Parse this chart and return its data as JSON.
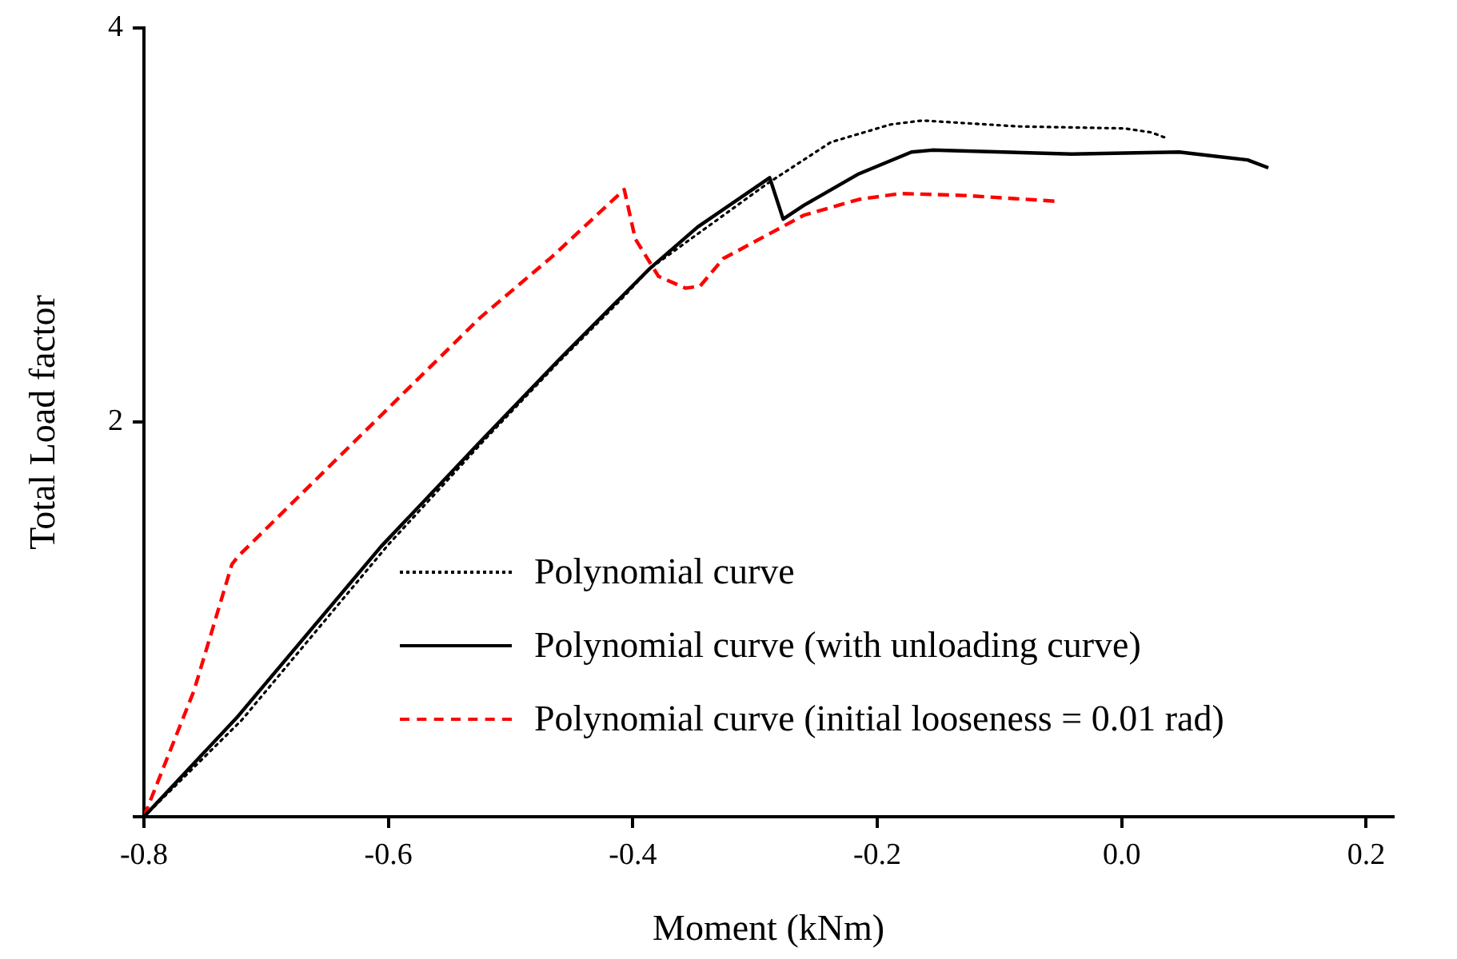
{
  "chart_data": {
    "type": "line",
    "xlabel": "Moment (kNm)",
    "ylabel": "Total Load factor",
    "xlim": [
      -0.8,
      0.222
    ],
    "xticks": [
      {
        "value": -0.8,
        "label": "-0.8"
      },
      {
        "value": -0.6,
        "label": "-0.6"
      },
      {
        "value": -0.4,
        "label": "-0.4"
      },
      {
        "value": -0.2,
        "label": "-0.2"
      },
      {
        "value": 0,
        "label": "0.0"
      },
      {
        "value": 0.2,
        "label": "0.2"
      }
    ],
    "ylim": [
      0,
      4
    ],
    "yticks": [
      {
        "value": 0,
        "label": null
      },
      2,
      4
    ],
    "grid": false,
    "legend": "bottom right",
    "marker": "none",
    "series": [
      {
        "name": "Polynomial curve",
        "color": "#000000",
        "line_style": "dotted",
        "x": [
          -0.8,
          -0.72,
          -0.6,
          -0.52,
          -0.46,
          -0.41,
          -0.386,
          -0.29,
          -0.238,
          -0.189,
          -0.163,
          -0.084,
          0.002,
          0.024,
          0.037
        ],
        "values": [
          0,
          0.49,
          1.38,
          1.92,
          2.31,
          2.62,
          2.78,
          3.21,
          3.42,
          3.51,
          3.53,
          3.5,
          3.49,
          3.47,
          3.44
        ]
      },
      {
        "name": "Polynomial curve (with unloading curve)",
        "color": "#000000",
        "line_style": "solid",
        "x": [
          -0.8,
          -0.723,
          -0.606,
          -0.525,
          -0.46,
          -0.407,
          -0.386,
          -0.347,
          -0.288,
          -0.277,
          -0.26,
          -0.215,
          -0.172,
          -0.155,
          -0.041,
          0.047,
          0.103,
          0.12
        ],
        "values": [
          0,
          0.51,
          1.37,
          1.9,
          2.32,
          2.65,
          2.78,
          2.99,
          3.24,
          3.03,
          3.1,
          3.26,
          3.37,
          3.38,
          3.36,
          3.37,
          3.33,
          3.29
        ]
      },
      {
        "name": "Polynomial curve (initial looseness = 0.01 rad)",
        "color": "#ff0000",
        "line_style": "dashed",
        "x": [
          -0.8,
          -0.759,
          -0.728,
          -0.723,
          -0.615,
          -0.525,
          -0.466,
          -0.407,
          -0.398,
          -0.379,
          -0.357,
          -0.345,
          -0.326,
          -0.26,
          -0.215,
          -0.181,
          -0.129,
          -0.052
        ],
        "values": [
          0,
          0.64,
          1.28,
          1.32,
          1.98,
          2.53,
          2.84,
          3.18,
          2.93,
          2.74,
          2.68,
          2.69,
          2.83,
          3.05,
          3.13,
          3.16,
          3.15,
          3.12
        ]
      }
    ]
  }
}
